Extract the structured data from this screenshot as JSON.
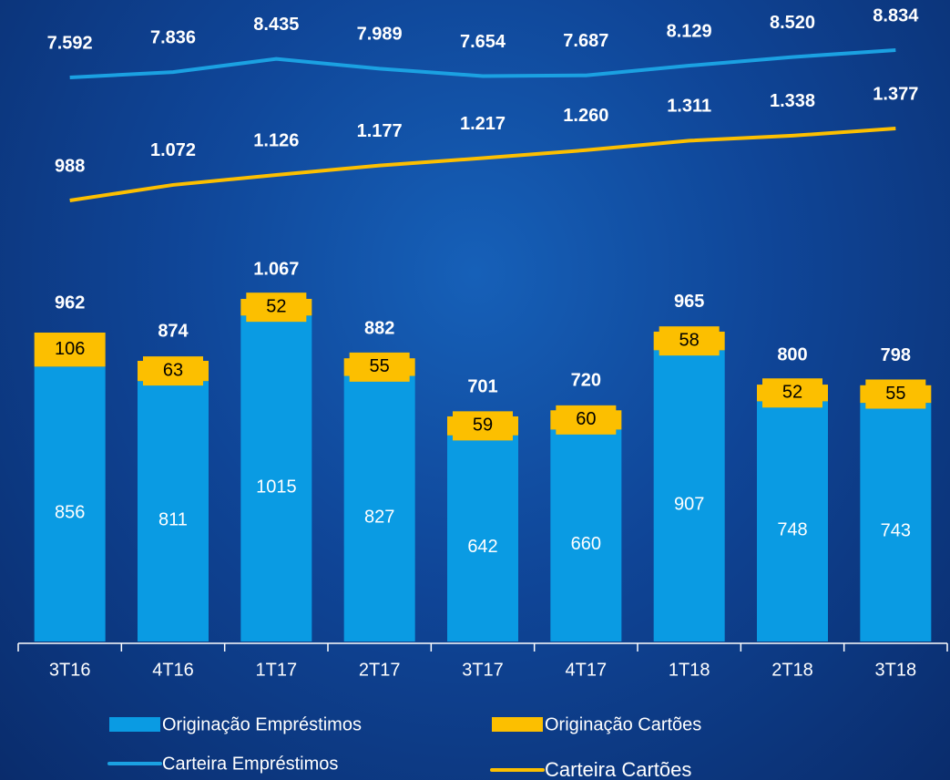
{
  "chart_data": {
    "type": "bar-line",
    "categories": [
      "3T16",
      "4T16",
      "1T17",
      "2T17",
      "3T17",
      "4T17",
      "1T18",
      "2T18",
      "3T18"
    ],
    "series": [
      {
        "name": "Originação Empréstimos",
        "color": "#0a9be3",
        "values": [
          856,
          811,
          1015,
          827,
          642,
          660,
          907,
          748,
          743
        ]
      },
      {
        "name": "Originação Cartões",
        "color": "#fcbf00",
        "values": [
          106,
          63,
          52,
          55,
          59,
          60,
          58,
          52,
          55
        ]
      }
    ],
    "totals": {
      "values": [
        962,
        874,
        1067,
        882,
        701,
        720,
        965,
        800,
        798
      ],
      "value_labels": [
        "962",
        "874",
        "1.067",
        "882",
        "701",
        "720",
        "965",
        "800",
        "798"
      ]
    },
    "lines": [
      {
        "name": "Carteira Empréstimos",
        "color": "#1ba1e2",
        "values": [
          7592,
          7836,
          8435,
          7989,
          7654,
          7687,
          8129,
          8520,
          8834
        ],
        "value_labels": [
          "7.592",
          "7.836",
          "8.435",
          "7.989",
          "7.654",
          "7.687",
          "8.129",
          "8.520",
          "8.834"
        ]
      },
      {
        "name": "Carteira Cartões",
        "color": "#fcbf00",
        "values": [
          988,
          1072,
          1126,
          1177,
          1217,
          1260,
          1311,
          1338,
          1377
        ],
        "value_labels": [
          "988",
          "1.072",
          "1.126",
          "1.177",
          "1.217",
          "1.260",
          "1.311",
          "1.338",
          "1.377"
        ]
      }
    ]
  }
}
